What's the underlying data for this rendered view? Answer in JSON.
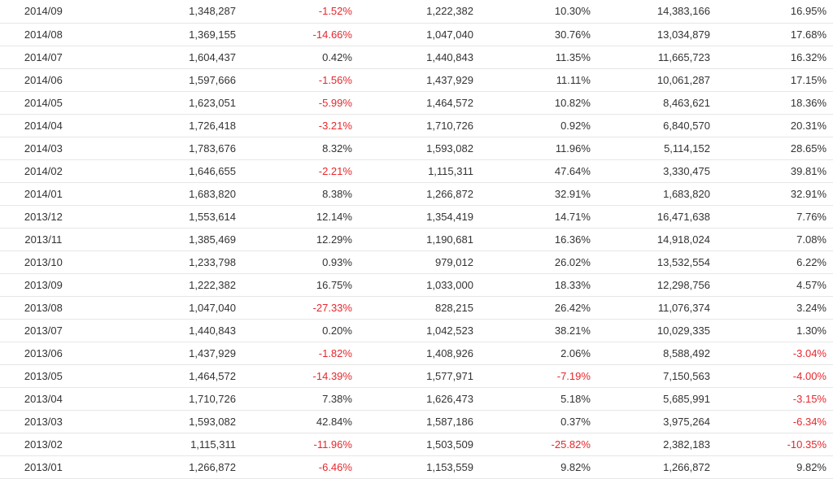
{
  "table": {
    "rows": [
      {
        "period": "2014/09",
        "v1": "1,348,287",
        "p1": "-1.52%",
        "v2": "1,222,382",
        "p2": "10.30%",
        "v3": "14,383,166",
        "p3": "16.95%"
      },
      {
        "period": "2014/08",
        "v1": "1,369,155",
        "p1": "-14.66%",
        "v2": "1,047,040",
        "p2": "30.76%",
        "v3": "13,034,879",
        "p3": "17.68%"
      },
      {
        "period": "2014/07",
        "v1": "1,604,437",
        "p1": "0.42%",
        "v2": "1,440,843",
        "p2": "11.35%",
        "v3": "11,665,723",
        "p3": "16.32%"
      },
      {
        "period": "2014/06",
        "v1": "1,597,666",
        "p1": "-1.56%",
        "v2": "1,437,929",
        "p2": "11.11%",
        "v3": "10,061,287",
        "p3": "17.15%"
      },
      {
        "period": "2014/05",
        "v1": "1,623,051",
        "p1": "-5.99%",
        "v2": "1,464,572",
        "p2": "10.82%",
        "v3": "8,463,621",
        "p3": "18.36%"
      },
      {
        "period": "2014/04",
        "v1": "1,726,418",
        "p1": "-3.21%",
        "v2": "1,710,726",
        "p2": "0.92%",
        "v3": "6,840,570",
        "p3": "20.31%"
      },
      {
        "period": "2014/03",
        "v1": "1,783,676",
        "p1": "8.32%",
        "v2": "1,593,082",
        "p2": "11.96%",
        "v3": "5,114,152",
        "p3": "28.65%"
      },
      {
        "period": "2014/02",
        "v1": "1,646,655",
        "p1": "-2.21%",
        "v2": "1,115,311",
        "p2": "47.64%",
        "v3": "3,330,475",
        "p3": "39.81%"
      },
      {
        "period": "2014/01",
        "v1": "1,683,820",
        "p1": "8.38%",
        "v2": "1,266,872",
        "p2": "32.91%",
        "v3": "1,683,820",
        "p3": "32.91%"
      },
      {
        "period": "2013/12",
        "v1": "1,553,614",
        "p1": "12.14%",
        "v2": "1,354,419",
        "p2": "14.71%",
        "v3": "16,471,638",
        "p3": "7.76%"
      },
      {
        "period": "2013/11",
        "v1": "1,385,469",
        "p1": "12.29%",
        "v2": "1,190,681",
        "p2": "16.36%",
        "v3": "14,918,024",
        "p3": "7.08%"
      },
      {
        "period": "2013/10",
        "v1": "1,233,798",
        "p1": "0.93%",
        "v2": "979,012",
        "p2": "26.02%",
        "v3": "13,532,554",
        "p3": "6.22%"
      },
      {
        "period": "2013/09",
        "v1": "1,222,382",
        "p1": "16.75%",
        "v2": "1,033,000",
        "p2": "18.33%",
        "v3": "12,298,756",
        "p3": "4.57%"
      },
      {
        "period": "2013/08",
        "v1": "1,047,040",
        "p1": "-27.33%",
        "v2": "828,215",
        "p2": "26.42%",
        "v3": "11,076,374",
        "p3": "3.24%"
      },
      {
        "period": "2013/07",
        "v1": "1,440,843",
        "p1": "0.20%",
        "v2": "1,042,523",
        "p2": "38.21%",
        "v3": "10,029,335",
        "p3": "1.30%"
      },
      {
        "period": "2013/06",
        "v1": "1,437,929",
        "p1": "-1.82%",
        "v2": "1,408,926",
        "p2": "2.06%",
        "v3": "8,588,492",
        "p3": "-3.04%"
      },
      {
        "period": "2013/05",
        "v1": "1,464,572",
        "p1": "-14.39%",
        "v2": "1,577,971",
        "p2": "-7.19%",
        "v3": "7,150,563",
        "p3": "-4.00%"
      },
      {
        "period": "2013/04",
        "v1": "1,710,726",
        "p1": "7.38%",
        "v2": "1,626,473",
        "p2": "5.18%",
        "v3": "5,685,991",
        "p3": "-3.15%"
      },
      {
        "period": "2013/03",
        "v1": "1,593,082",
        "p1": "42.84%",
        "v2": "1,587,186",
        "p2": "0.37%",
        "v3": "3,975,264",
        "p3": "-6.34%"
      },
      {
        "period": "2013/02",
        "v1": "1,115,311",
        "p1": "-11.96%",
        "v2": "1,503,509",
        "p2": "-25.82%",
        "v3": "2,382,183",
        "p3": "-10.35%"
      },
      {
        "period": "2013/01",
        "v1": "1,266,872",
        "p1": "-6.46%",
        "v2": "1,153,559",
        "p2": "9.82%",
        "v3": "1,266,872",
        "p3": "9.82%"
      }
    ]
  },
  "colors": {
    "negative": "#e8262c",
    "text": "#333333",
    "row_border": "#e6e6e6"
  }
}
